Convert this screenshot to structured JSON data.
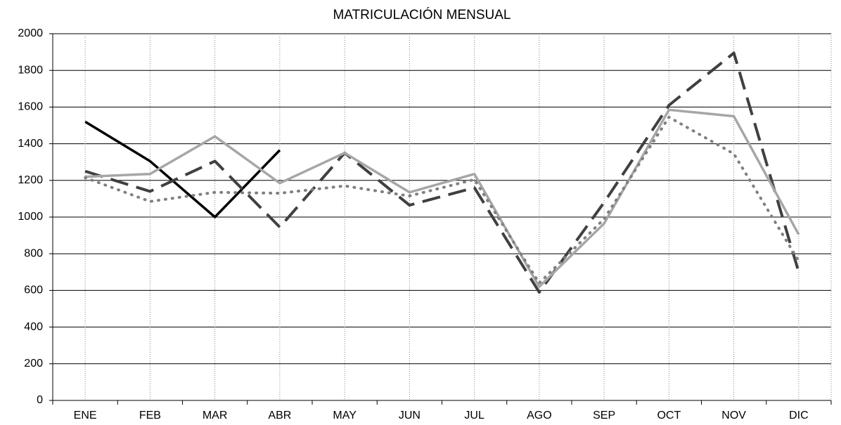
{
  "chart_data": {
    "type": "line",
    "title": "MATRICULACIÓN MENSUAL",
    "categories": [
      "ENE",
      "FEB",
      "MAR",
      "ABR",
      "MAY",
      "JUN",
      "JUL",
      "AGO",
      "SEP",
      "OCT",
      "NOV",
      "DIC"
    ],
    "series": [
      {
        "color": "#000000",
        "dash": "solid",
        "values": [
          1520,
          1305,
          1000,
          1365,
          null,
          null,
          null,
          null,
          null,
          null,
          null,
          null
        ]
      },
      {
        "color": "#404040",
        "dash": "dashed",
        "values": [
          1250,
          1140,
          1305,
          945,
          1350,
          1065,
          1160,
          590,
          1080,
          1610,
          1895,
          700
        ]
      },
      {
        "color": "#a6a6a6",
        "dash": "solid",
        "values": [
          1220,
          1235,
          1440,
          1185,
          1350,
          1135,
          1235,
          620,
          965,
          1585,
          1550,
          905
        ]
      },
      {
        "color": "#808080",
        "dash": "dotted",
        "values": [
          1215,
          1085,
          1135,
          1130,
          1170,
          1115,
          1205,
          640,
          990,
          1545,
          1345,
          760
        ]
      }
    ],
    "ylim": [
      0,
      2000
    ],
    "yticks": [
      0,
      200,
      400,
      600,
      800,
      1000,
      1200,
      1400,
      1600,
      1800,
      2000
    ],
    "grid": true
  }
}
